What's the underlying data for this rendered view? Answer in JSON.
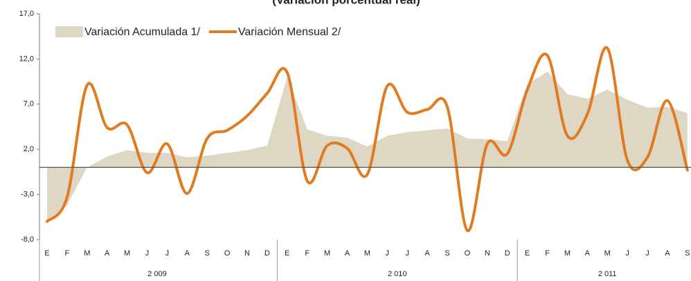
{
  "chart_data": {
    "type": "area-line",
    "title": "(Variación porcentual real)",
    "categories": [
      "E",
      "F",
      "M",
      "A",
      "M",
      "J",
      "J",
      "A",
      "S",
      "O",
      "N",
      "D",
      "E",
      "F",
      "M",
      "A",
      "M",
      "J",
      "J",
      "A",
      "S",
      "O",
      "N",
      "D",
      "E",
      "F",
      "M",
      "A",
      "M",
      "J",
      "J",
      "A",
      "S"
    ],
    "groups": [
      "2 009",
      "2 010",
      "2 011"
    ],
    "series": [
      {
        "name": "Variación Acumulada 1/",
        "color": "#ddd7c4",
        "kind": "area",
        "values": [
          -6.0,
          -4.2,
          0.0,
          1.2,
          1.9,
          1.6,
          1.6,
          1.1,
          1.3,
          1.6,
          1.9,
          2.4,
          10.0,
          4.2,
          3.5,
          3.3,
          2.3,
          3.5,
          3.9,
          4.1,
          4.3,
          3.2,
          3.1,
          2.9,
          9.2,
          10.6,
          8.1,
          7.6,
          8.6,
          7.5,
          6.6,
          6.7,
          6.0
        ]
      },
      {
        "name": "Variación Mensual 2/",
        "color": "#e07b22",
        "kind": "line",
        "values": [
          -6.0,
          -3.3,
          9.1,
          4.4,
          4.7,
          -0.6,
          2.6,
          -2.9,
          3.2,
          4.1,
          5.7,
          8.2,
          10.5,
          -1.5,
          2.4,
          2.1,
          -0.8,
          9.0,
          6.1,
          6.4,
          6.7,
          -7.0,
          2.6,
          1.5,
          8.6,
          12.4,
          3.5,
          5.9,
          13.2,
          0.8,
          1.1,
          7.4,
          -0.3
        ]
      }
    ],
    "ylim": [
      -8,
      17
    ],
    "yticks": [
      {
        "value": 17,
        "label": "17,0"
      },
      {
        "value": 12,
        "label": "12,0"
      },
      {
        "value": 7,
        "label": "7,0"
      },
      {
        "value": 2,
        "label": "2,0"
      },
      {
        "value": -3,
        "label": "-3,0"
      },
      {
        "value": -8,
        "label": "-8,0"
      }
    ],
    "legend": "upper left"
  }
}
